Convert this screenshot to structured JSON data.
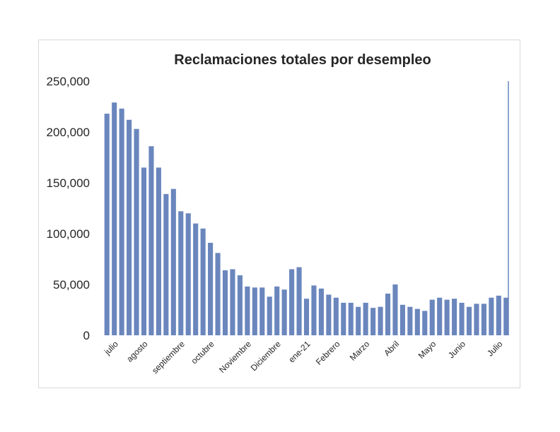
{
  "chart_data": {
    "type": "bar",
    "title": "Reclamaciones totales por desempleo",
    "ylim": [
      0,
      250000
    ],
    "yticks": [
      "0",
      "50,000",
      "100,000",
      "150,000",
      "200,000",
      "250,000"
    ],
    "ytick_values": [
      0,
      50000,
      100000,
      150000,
      200000,
      250000
    ],
    "month_labels": [
      {
        "label": "julio",
        "index": 1
      },
      {
        "label": "agosto",
        "index": 5
      },
      {
        "label": "septiembre",
        "index": 10
      },
      {
        "label": "octubre",
        "index": 14
      },
      {
        "label": "Noviembre",
        "index": 19
      },
      {
        "label": "Diciembre",
        "index": 23
      },
      {
        "label": "ene-21",
        "index": 27
      },
      {
        "label": "Febrero",
        "index": 31
      },
      {
        "label": "Marzo",
        "index": 35
      },
      {
        "label": "Abril",
        "index": 39
      },
      {
        "label": "Mayo",
        "index": 44
      },
      {
        "label": "Junio",
        "index": 48
      },
      {
        "label": "Julio",
        "index": 53
      }
    ],
    "values": [
      218000,
      229000,
      223000,
      212000,
      203000,
      165000,
      186000,
      165000,
      139000,
      144000,
      122000,
      120000,
      110000,
      105000,
      91000,
      81000,
      64000,
      65000,
      59000,
      48000,
      47000,
      47000,
      38000,
      48000,
      45000,
      65000,
      67000,
      36000,
      49000,
      46000,
      40000,
      37000,
      32000,
      32000,
      28000,
      32000,
      27000,
      28000,
      41000,
      50000,
      30000,
      28000,
      26000,
      24000,
      35000,
      37000,
      35000,
      36000,
      32000,
      28000,
      31000,
      31000,
      37000,
      39000,
      37000
    ],
    "legend": "none",
    "grid": false
  }
}
